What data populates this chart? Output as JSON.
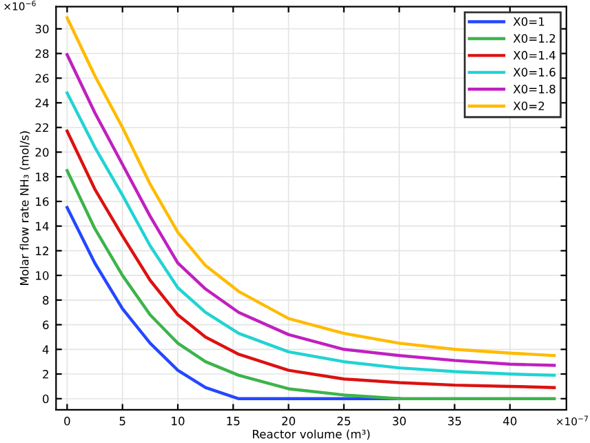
{
  "chart_data": {
    "type": "line",
    "xlabel": "Reactor volume (m³)",
    "ylabel": "Molar flow rate NH₃ (mol/s)",
    "annotations": [
      "×10$^{−6}$",
      "×10$^{−7}$"
    ],
    "x": [
      0,
      2.5,
      5,
      7.5,
      10,
      12.5,
      15.5,
      20,
      25,
      30,
      35,
      40,
      44
    ],
    "series": [
      {
        "name": "X0=1",
        "color": "#2447ff",
        "values": [
          15.5,
          11,
          7.3,
          4.5,
          2.3,
          0.9,
          0,
          0,
          0,
          0,
          null,
          null,
          null
        ]
      },
      {
        "name": "X0=1.2",
        "color": "#3cb44b",
        "values": [
          18.5,
          13.8,
          10,
          6.8,
          4.5,
          3,
          1.9,
          0.8,
          0.3,
          0,
          0,
          0,
          0
        ]
      },
      {
        "name": "X0=1.4",
        "color": "#dd1111",
        "values": [
          21.7,
          17,
          13.2,
          9.6,
          6.8,
          5,
          3.6,
          2.3,
          1.6,
          1.3,
          1.1,
          1.0,
          0.9
        ]
      },
      {
        "name": "X0=1.6",
        "color": "#22d3d3",
        "values": [
          24.8,
          20.4,
          16.5,
          12.4,
          9,
          7,
          5.3,
          3.8,
          3.0,
          2.5,
          2.2,
          2.0,
          1.9
        ]
      },
      {
        "name": "X0=1.8",
        "color": "#c020c0",
        "values": [
          27.9,
          23.2,
          19,
          14.8,
          11,
          8.9,
          7.0,
          5.2,
          4.0,
          3.5,
          3.1,
          2.8,
          2.7
        ]
      },
      {
        "name": "X0=2",
        "color": "#ffbb00",
        "values": [
          30.9,
          26.2,
          22,
          17.4,
          13.5,
          10.8,
          8.7,
          6.5,
          5.3,
          4.5,
          4.0,
          3.7,
          3.5
        ]
      }
    ],
    "xlim": [
      -1,
      45.1
    ],
    "ylim": [
      -0.9,
      31.8
    ],
    "xticks": [
      0,
      5,
      10,
      15,
      20,
      25,
      30,
      35,
      40
    ],
    "yticks": [
      0,
      2,
      4,
      6,
      8,
      10,
      12,
      14,
      16,
      18,
      20,
      22,
      24,
      26,
      28,
      30
    ],
    "grid": true,
    "legend": "top right",
    "marker": "none",
    "line_style": "solid"
  }
}
